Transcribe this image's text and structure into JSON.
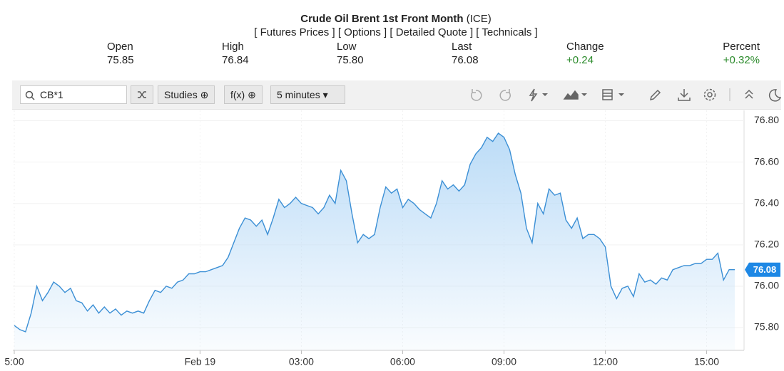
{
  "header": {
    "title": "Crude Oil Brent 1st Front Month",
    "exchange": "(ICE)",
    "links": [
      "[ Futures Prices ]",
      "[ Options ]",
      "[ Detailed Quote ]",
      "[ Technicals ]"
    ]
  },
  "quote": [
    {
      "label": "Open",
      "value": "75.85"
    },
    {
      "label": "High",
      "value": "76.84"
    },
    {
      "label": "Low",
      "value": "75.80"
    },
    {
      "label": "Last",
      "value": "76.08"
    },
    {
      "label": "Change",
      "value": "+0.24"
    },
    {
      "label": "Percent",
      "value": "+0.32%"
    }
  ],
  "toolbar": {
    "search": "CB*1",
    "buttons": [
      "Studies",
      "f(x)",
      "5 minutes"
    ]
  },
  "chart_data": {
    "type": "line",
    "color": "#3b8fd5",
    "grid": true,
    "categories": [
      "5:00",
      null,
      null,
      null,
      null,
      null,
      null,
      null,
      null,
      null,
      null,
      null,
      null,
      null,
      null,
      null,
      null,
      null,
      null,
      null,
      null,
      null,
      null,
      null,
      null,
      null,
      null,
      null,
      null,
      null,
      null,
      null,
      null,
      "Feb 19",
      null,
      null,
      null,
      null,
      null,
      null,
      null,
      null,
      null,
      null,
      null,
      null,
      null,
      null,
      null,
      null,
      null,
      "03:00",
      null,
      null,
      null,
      null,
      null,
      null,
      null,
      null,
      null,
      null,
      null,
      null,
      null,
      null,
      null,
      null,
      null,
      "06:00",
      null,
      null,
      null,
      null,
      null,
      null,
      null,
      null,
      null,
      null,
      null,
      null,
      null,
      null,
      null,
      null,
      null,
      "09:00",
      null,
      null,
      null,
      null,
      null,
      null,
      null,
      null,
      null,
      null,
      null,
      null,
      null,
      null,
      null,
      null,
      null,
      "12:00",
      null,
      null,
      null,
      null,
      null,
      null,
      null,
      null,
      null,
      null,
      null,
      null,
      null,
      null,
      null,
      null,
      null,
      "15:00",
      null,
      null,
      null,
      null,
      null
    ],
    "values": [
      75.81,
      75.79,
      75.78,
      75.87,
      76.0,
      75.93,
      75.97,
      76.02,
      76.0,
      75.97,
      75.99,
      75.93,
      75.92,
      75.88,
      75.91,
      75.87,
      75.9,
      75.87,
      75.89,
      75.86,
      75.88,
      75.87,
      75.88,
      75.87,
      75.93,
      75.98,
      75.97,
      76.0,
      75.99,
      76.02,
      76.03,
      76.06,
      76.06,
      76.07,
      76.07,
      76.08,
      76.09,
      76.1,
      76.14,
      76.21,
      76.28,
      76.33,
      76.32,
      76.29,
      76.32,
      76.25,
      76.33,
      76.42,
      76.38,
      76.4,
      76.43,
      76.4,
      76.39,
      76.38,
      76.35,
      76.38,
      76.44,
      76.4,
      76.56,
      76.51,
      76.35,
      76.21,
      76.25,
      76.23,
      76.25,
      76.38,
      76.48,
      76.45,
      76.47,
      76.38,
      76.42,
      76.4,
      76.37,
      76.35,
      76.33,
      76.4,
      76.51,
      76.47,
      76.49,
      76.46,
      76.49,
      76.59,
      76.64,
      76.67,
      76.72,
      76.7,
      76.74,
      76.72,
      76.66,
      76.54,
      76.45,
      76.28,
      76.21,
      76.4,
      76.35,
      76.47,
      76.44,
      76.45,
      76.32,
      76.28,
      76.33,
      76.23,
      76.25,
      76.25,
      76.23,
      76.19,
      76.0,
      75.94,
      75.99,
      76.0,
      75.95,
      76.06,
      76.02,
      76.03,
      76.01,
      76.04,
      76.03,
      76.08,
      76.09,
      76.1,
      76.1,
      76.11,
      76.11,
      76.13,
      76.13,
      76.16,
      76.03,
      76.08,
      76.08
    ],
    "ylim": [
      75.69,
      76.85
    ],
    "yticks": [
      {
        "value": 75.8,
        "label": "75.80"
      },
      {
        "value": 76.0,
        "label": "76.00"
      },
      {
        "value": 76.2,
        "label": "76.20"
      },
      {
        "value": 76.4,
        "label": "76.40"
      },
      {
        "value": 76.6,
        "label": "76.60"
      },
      {
        "value": 76.8,
        "label": "76.80"
      }
    ]
  }
}
